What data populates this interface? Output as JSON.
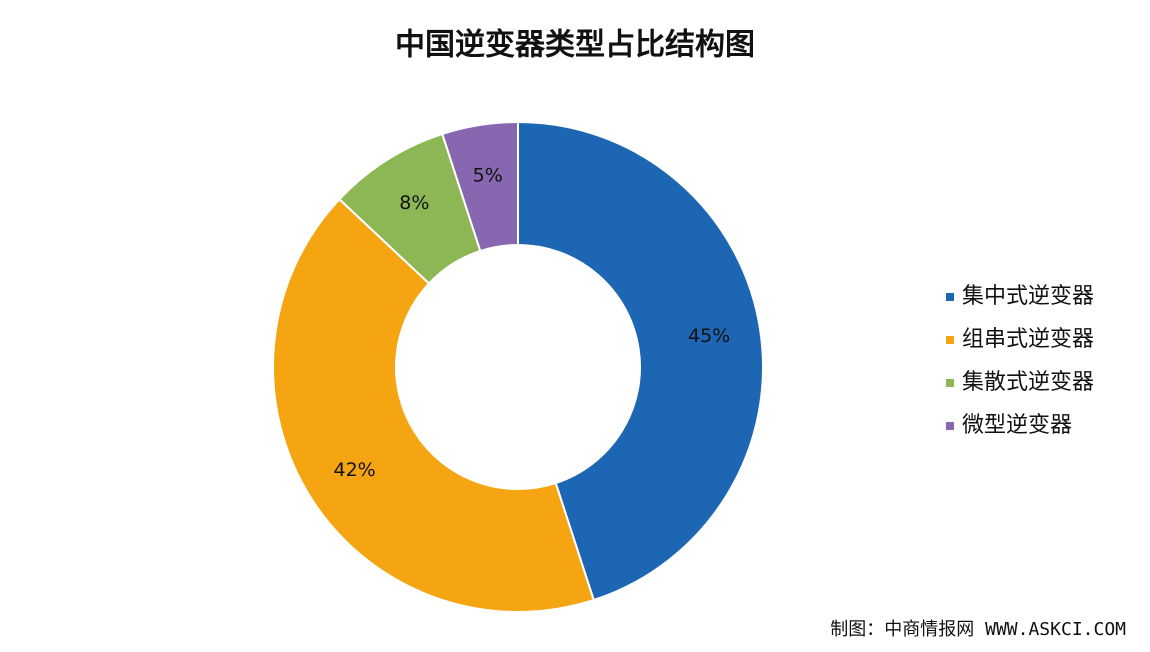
{
  "chart_data": {
    "type": "donut",
    "title": "中国逆变器类型占比结构图",
    "categories": [
      "集中式逆变器",
      "组串式逆变器",
      "集散式逆变器",
      "微型逆变器"
    ],
    "values": [
      45,
      42,
      8,
      5
    ],
    "value_labels": [
      "45%",
      "42%",
      "8%",
      "5%"
    ],
    "colors": [
      "#1c66b3",
      "#f5a511",
      "#8db654",
      "#8667b0"
    ],
    "legend": "right",
    "source": "制图：中商情报网 WWW.ASKCI.COM"
  }
}
